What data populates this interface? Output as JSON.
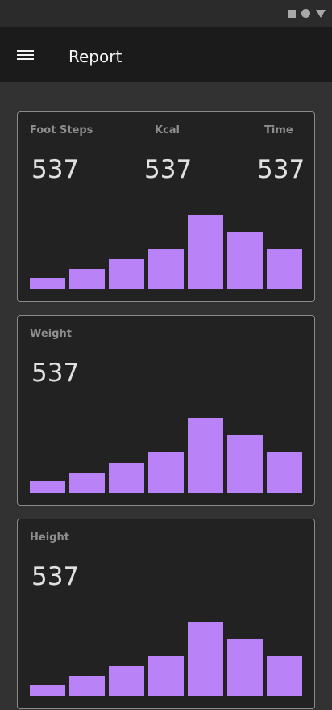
{
  "status_icons": [
    "stop-square-icon",
    "home-circle-icon",
    "back-triangle-icon"
  ],
  "app_bar": {
    "title": "Report",
    "menu_icon": "hamburger-menu-icon"
  },
  "colors": {
    "bar": "#b983f7",
    "card_bg": "#222222",
    "app_bar_bg": "#1b1b1b",
    "page_bg": "#323232"
  },
  "cards": {
    "activity": {
      "metrics": [
        {
          "label": "Foot Steps",
          "value": "537"
        },
        {
          "label": "Kcal",
          "value": "537"
        },
        {
          "label": "Time",
          "value": "537"
        }
      ]
    },
    "weight": {
      "label": "Weight",
      "value": "537"
    },
    "height": {
      "label": "Height",
      "value": "537"
    }
  },
  "chart_data": [
    {
      "type": "bar",
      "values": [
        14,
        25,
        37,
        50,
        92,
        71,
        50
      ],
      "ylim": [
        0,
        100
      ]
    },
    {
      "type": "bar",
      "values": [
        14,
        25,
        37,
        50,
        92,
        71,
        50
      ],
      "ylim": [
        0,
        100
      ]
    },
    {
      "type": "bar",
      "values": [
        14,
        25,
        37,
        50,
        92,
        71,
        50
      ],
      "ylim": [
        0,
        100
      ]
    }
  ]
}
